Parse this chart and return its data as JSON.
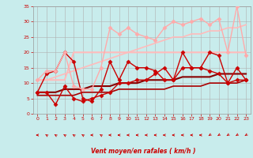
{
  "xlabel": "Vent moyen/en rafales ( km/h )",
  "bg_color": "#c8ecec",
  "grid_color": "#b0b0b0",
  "xlim": [
    -0.5,
    23.5
  ],
  "ylim": [
    0,
    35
  ],
  "yticks": [
    0,
    5,
    10,
    15,
    20,
    25,
    30,
    35
  ],
  "xticks": [
    0,
    1,
    2,
    3,
    4,
    5,
    6,
    7,
    8,
    9,
    10,
    11,
    12,
    13,
    14,
    15,
    16,
    17,
    18,
    19,
    20,
    21,
    22,
    23
  ],
  "lines": [
    {
      "x": [
        0,
        1,
        2,
        3,
        4,
        5,
        6,
        7,
        8,
        9,
        10,
        11,
        12,
        13,
        14,
        15,
        16,
        17,
        18,
        19,
        20,
        21,
        22,
        23
      ],
      "y": [
        7,
        13,
        14,
        20,
        17,
        5,
        4,
        8,
        17,
        11,
        17,
        15,
        15,
        14,
        11,
        11,
        20,
        15,
        15,
        20,
        19,
        10,
        15,
        11
      ],
      "color": "#cc0000",
      "lw": 1.0,
      "marker": "D",
      "ms": 2.5,
      "zorder": 5
    },
    {
      "x": [
        0,
        1,
        2,
        3,
        4,
        5,
        6,
        7,
        8,
        9,
        10,
        11,
        12,
        13,
        14,
        15,
        16,
        17,
        18,
        19,
        20,
        21,
        22,
        23
      ],
      "y": [
        7,
        7,
        3,
        9,
        5,
        4,
        5,
        6,
        7,
        10,
        10,
        11,
        11,
        13,
        15,
        11,
        15,
        15,
        15,
        14,
        13,
        10,
        11,
        11
      ],
      "color": "#cc0000",
      "lw": 1.0,
      "marker": "D",
      "ms": 2.5,
      "zorder": 4
    },
    {
      "x": [
        0,
        1,
        2,
        3,
        4,
        5,
        6,
        7,
        8,
        9,
        10,
        11,
        12,
        13,
        14,
        15,
        16,
        17,
        18,
        19,
        20,
        21,
        22,
        23
      ],
      "y": [
        7,
        7,
        7,
        8,
        8,
        8,
        9,
        9,
        9,
        10,
        10,
        10,
        11,
        11,
        11,
        11,
        12,
        12,
        12,
        12,
        13,
        13,
        13,
        13
      ],
      "color": "#880000",
      "lw": 1.5,
      "marker": null,
      "ms": 0,
      "zorder": 3
    },
    {
      "x": [
        0,
        1,
        2,
        3,
        4,
        5,
        6,
        7,
        8,
        9,
        10,
        11,
        12,
        13,
        14,
        15,
        16,
        17,
        18,
        19,
        20,
        21,
        22,
        23
      ],
      "y": [
        6,
        6,
        6,
        6,
        6,
        7,
        7,
        7,
        7,
        8,
        8,
        8,
        8,
        8,
        8,
        9,
        9,
        9,
        9,
        10,
        10,
        10,
        10,
        11
      ],
      "color": "#aa0000",
      "lw": 1.2,
      "marker": null,
      "ms": 0,
      "zorder": 3
    },
    {
      "x": [
        0,
        1,
        2,
        3,
        4,
        5,
        6,
        7,
        8,
        9,
        10,
        11,
        12,
        13,
        14,
        15,
        16,
        17,
        18,
        19,
        20,
        21,
        22,
        23
      ],
      "y": [
        11,
        14,
        14,
        20,
        9,
        8,
        8,
        15,
        28,
        26,
        28,
        26,
        25,
        24,
        28,
        30,
        29,
        30,
        31,
        29,
        31,
        20,
        35,
        19
      ],
      "color": "#ffaaaa",
      "lw": 1.0,
      "marker": "D",
      "ms": 2.5,
      "zorder": 5
    },
    {
      "x": [
        0,
        1,
        2,
        3,
        4,
        5,
        6,
        7,
        8,
        9,
        10,
        11,
        12,
        13,
        14,
        15,
        16,
        17,
        18,
        19,
        20,
        21,
        22,
        23
      ],
      "y": [
        11,
        11,
        11,
        11,
        20,
        20,
        20,
        20,
        20,
        20,
        20,
        20,
        20,
        20,
        20,
        20,
        20,
        20,
        20,
        20,
        20,
        20,
        20,
        20
      ],
      "color": "#ffbbbb",
      "lw": 1.5,
      "marker": null,
      "ms": 0,
      "zorder": 2
    },
    {
      "x": [
        0,
        1,
        2,
        3,
        4,
        5,
        6,
        7,
        8,
        9,
        10,
        11,
        12,
        13,
        14,
        15,
        16,
        17,
        18,
        19,
        20,
        21,
        22,
        23
      ],
      "y": [
        11,
        11,
        12,
        13,
        14,
        15,
        16,
        17,
        18,
        19,
        20,
        21,
        22,
        23,
        24,
        25,
        25,
        26,
        26,
        27,
        27,
        28,
        28,
        29
      ],
      "color": "#ffbbbb",
      "lw": 1.2,
      "marker": null,
      "ms": 0,
      "zorder": 2
    }
  ],
  "wind_arrows_x": [
    0,
    1,
    2,
    3,
    4,
    5,
    6,
    7,
    8,
    9,
    10,
    11,
    12,
    13,
    14,
    15,
    16,
    17,
    18,
    19,
    20,
    21,
    22,
    23
  ],
  "wind_angles_deg": [
    270,
    315,
    315,
    315,
    315,
    315,
    270,
    315,
    270,
    270,
    270,
    270,
    270,
    270,
    270,
    270,
    270,
    270,
    270,
    225,
    225,
    225,
    225,
    225
  ]
}
